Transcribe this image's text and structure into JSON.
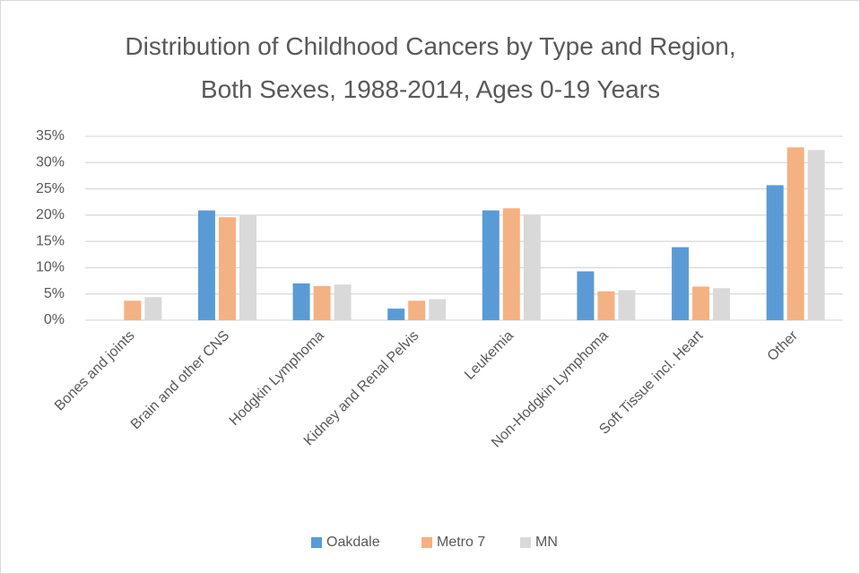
{
  "chart_data": {
    "type": "bar",
    "title": "Distribution of Childhood Cancers by Type and Region, Both Sexes, 1988-2014, Ages 0-19 Years",
    "categories": [
      "Bones and joints",
      "Brain and other CNS",
      "Hodgkin Lymphoma",
      "Kidney and Renal Pelvis",
      "Leukemia",
      "Non-Hodgkin Lymphoma",
      "Soft Tissue incl. Heart",
      "Other"
    ],
    "series": [
      {
        "name": "Oakdale",
        "color": "#5b9bd5",
        "values": [
          0,
          20.9,
          7.0,
          2.2,
          20.9,
          9.3,
          13.9,
          25.7
        ]
      },
      {
        "name": "Metro 7",
        "color": "#f4b183",
        "values": [
          3.7,
          19.6,
          6.5,
          3.7,
          21.3,
          5.5,
          6.4,
          32.9
        ]
      },
      {
        "name": "MN",
        "color": "#d9d9d9",
        "values": [
          4.4,
          20.0,
          6.8,
          4.0,
          20.1,
          5.7,
          6.1,
          32.4
        ]
      }
    ],
    "ylim": [
      0,
      35
    ],
    "yticks": [
      {
        "value": 0,
        "label": "0%"
      },
      {
        "value": 5,
        "label": "5%"
      },
      {
        "value": 10,
        "label": "10%"
      },
      {
        "value": 15,
        "label": "15%"
      },
      {
        "value": 20,
        "label": "20%"
      },
      {
        "value": 25,
        "label": "25%"
      },
      {
        "value": 30,
        "label": "30%"
      },
      {
        "value": 35,
        "label": "35%"
      }
    ],
    "grid": true,
    "legend": "bottom"
  }
}
